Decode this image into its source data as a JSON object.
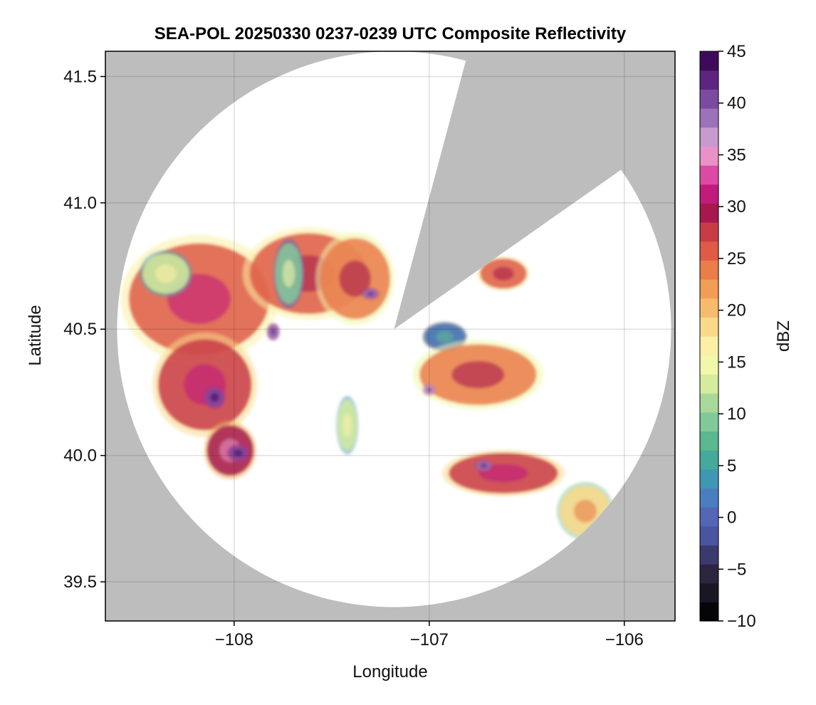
{
  "chart_data": {
    "type": "heatmap",
    "title": "SEA-POL 20250330 0237-0239 UTC Composite Reflectivity",
    "xlabel": "Longitude",
    "ylabel": "Latitude",
    "xlim": [
      -108.66,
      -105.74
    ],
    "ylim": [
      39.345,
      41.6
    ],
    "x_ticks": [
      -108,
      -107,
      -106
    ],
    "x_tick_labels": [
      "−108",
      "−107",
      "−106"
    ],
    "y_ticks": [
      39.5,
      40.0,
      40.5,
      41.0,
      41.5
    ],
    "y_tick_labels": [
      "39.5",
      "40.0",
      "40.5",
      "41.0",
      "41.5"
    ],
    "grid": true,
    "background_color": "#bdbdbd",
    "radar": {
      "center_lon": -107.18,
      "center_lat": 40.5,
      "range_lon": 1.42,
      "range_lat": 1.1,
      "blocked_sectors_deg_from_north": [
        [
          15,
          55
        ]
      ]
    },
    "colorbar": {
      "label": "dBZ",
      "min": -10,
      "max": 45,
      "ticks": [
        -10,
        -5,
        0,
        5,
        10,
        15,
        20,
        25,
        30,
        35,
        40,
        45
      ],
      "tick_labels": [
        "−10",
        "−5",
        "0",
        "5",
        "10",
        "15",
        "20",
        "25",
        "30",
        "35",
        "40",
        "45"
      ],
      "colors": [
        "#050407",
        "#1a1624",
        "#2b2540",
        "#3a3a6e",
        "#4a55a0",
        "#5466b6",
        "#4b7ec0",
        "#3e98b4",
        "#45aa9c",
        "#5bb890",
        "#82c99a",
        "#a9d99a",
        "#d3ec9d",
        "#f1f7ab",
        "#fbf0a5",
        "#fbd98a",
        "#f8bb6d",
        "#f29d57",
        "#ea7d4a",
        "#de5b45",
        "#c83c46",
        "#a6194e",
        "#c21b7c",
        "#dd4aa5",
        "#e992c6",
        "#c79ad0",
        "#9b73b8",
        "#7b4b9f",
        "#5e2580",
        "#3e0b5a"
      ]
    },
    "echoes": [
      {
        "name": "western-complex",
        "lon": -108.18,
        "lat": 40.62,
        "rlon": 0.36,
        "rlat": 0.22,
        "dbz": 26
      },
      {
        "name": "western-southern-lobe",
        "lon": -108.15,
        "lat": 40.28,
        "rlon": 0.24,
        "rlat": 0.18,
        "dbz": 27
      },
      {
        "name": "southwest-cell",
        "lon": -108.02,
        "lat": 40.02,
        "rlon": 0.12,
        "rlat": 0.1,
        "dbz": 29
      },
      {
        "name": "northwest-band",
        "lon": -107.62,
        "lat": 40.72,
        "rlon": 0.3,
        "rlat": 0.16,
        "dbz": 25
      },
      {
        "name": "north-central-band",
        "lon": -107.38,
        "lat": 40.7,
        "rlon": 0.18,
        "rlat": 0.16,
        "dbz": 24
      },
      {
        "name": "light-west-region",
        "lon": -108.35,
        "lat": 40.72,
        "rlon": 0.12,
        "rlat": 0.08,
        "dbz": 12
      },
      {
        "name": "clear-air-strip",
        "lon": -107.72,
        "lat": 40.72,
        "rlon": 0.07,
        "rlat": 0.12,
        "dbz": 9
      },
      {
        "name": "central-light-echo",
        "lon": -107.42,
        "lat": 40.12,
        "rlon": 0.05,
        "rlat": 0.1,
        "dbz": 12
      },
      {
        "name": "east-near-radar-weak",
        "lon": -106.92,
        "lat": 40.47,
        "rlon": 0.1,
        "rlat": 0.05,
        "dbz": 2
      },
      {
        "name": "east-band",
        "lon": -106.75,
        "lat": 40.32,
        "rlon": 0.3,
        "rlat": 0.12,
        "dbz": 24
      },
      {
        "name": "southeast-band",
        "lon": -106.62,
        "lat": 39.93,
        "rlon": 0.28,
        "rlat": 0.08,
        "dbz": 27
      },
      {
        "name": "far-southeast-light",
        "lon": -106.2,
        "lat": 39.78,
        "rlon": 0.13,
        "rlat": 0.1,
        "dbz": 19
      },
      {
        "name": "northeast-fragment",
        "lon": -106.62,
        "lat": 40.72,
        "rlon": 0.12,
        "rlat": 0.06,
        "dbz": 25
      },
      {
        "name": "core-west-1",
        "lon": -108.1,
        "lat": 40.23,
        "rlon": 0.05,
        "rlat": 0.04,
        "dbz": 40
      },
      {
        "name": "core-southwest-1",
        "lon": -107.98,
        "lat": 40.01,
        "rlon": 0.05,
        "rlat": 0.03,
        "dbz": 40
      },
      {
        "name": "core-central-1",
        "lon": -107.8,
        "lat": 40.49,
        "rlon": 0.03,
        "rlat": 0.03,
        "dbz": 38
      },
      {
        "name": "core-north-1",
        "lon": -107.3,
        "lat": 40.64,
        "rlon": 0.04,
        "rlat": 0.02,
        "dbz": 38
      },
      {
        "name": "core-southeast-1",
        "lon": -106.72,
        "lat": 39.96,
        "rlon": 0.04,
        "rlat": 0.02,
        "dbz": 38
      },
      {
        "name": "core-east-1",
        "lon": -107.0,
        "lat": 40.26,
        "rlon": 0.03,
        "rlat": 0.02,
        "dbz": 37
      }
    ]
  }
}
